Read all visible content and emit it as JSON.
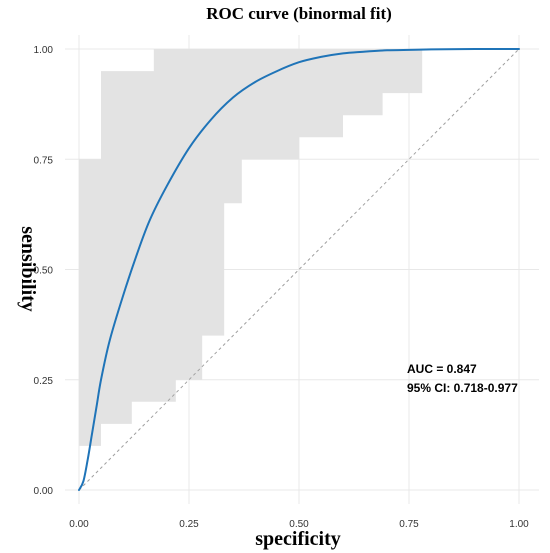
{
  "chart_data": {
    "type": "line",
    "title": "ROC curve (binormal fit)",
    "xlabel": "specificity",
    "ylabel": "sensibility",
    "xlim": [
      0,
      1
    ],
    "ylim": [
      0,
      1
    ],
    "x_ticks": [
      "0.00",
      "0.25",
      "0.50",
      "0.75",
      "1.00"
    ],
    "y_ticks": [
      "0.00",
      "0.25",
      "0.50",
      "0.75",
      "1.00"
    ],
    "grid": true,
    "colors": {
      "curve": "#1f74b8",
      "ci_band": "#e3e3e3",
      "diagonal": "#a0a0a0"
    },
    "series": [
      {
        "type": "line",
        "x": [
          0.0,
          0.01,
          0.02,
          0.03,
          0.04,
          0.05,
          0.07,
          0.1,
          0.13,
          0.16,
          0.2,
          0.25,
          0.3,
          0.35,
          0.4,
          0.45,
          0.5,
          0.55,
          0.6,
          0.65,
          0.7,
          0.75,
          0.8,
          0.9,
          1.0
        ],
        "y": [
          0.0,
          0.02,
          0.07,
          0.13,
          0.19,
          0.25,
          0.34,
          0.44,
          0.53,
          0.61,
          0.69,
          0.775,
          0.84,
          0.89,
          0.925,
          0.95,
          0.97,
          0.982,
          0.99,
          0.994,
          0.997,
          0.998,
          0.999,
          1.0,
          1.0
        ]
      }
    ],
    "ci_band": {
      "upper": [
        [
          0.0,
          0.0
        ],
        [
          0.0,
          0.75
        ],
        [
          0.05,
          0.75
        ],
        [
          0.05,
          0.95
        ],
        [
          0.17,
          0.95
        ],
        [
          0.17,
          1.0
        ],
        [
          0.78,
          1.0
        ],
        [
          0.78,
          0.9
        ]
      ],
      "lower": [
        [
          0.69,
          0.9
        ],
        [
          0.69,
          0.85
        ],
        [
          0.6,
          0.85
        ],
        [
          0.6,
          0.8
        ],
        [
          0.5,
          0.8
        ],
        [
          0.5,
          0.75
        ],
        [
          0.37,
          0.75
        ],
        [
          0.37,
          0.65
        ],
        [
          0.33,
          0.65
        ],
        [
          0.33,
          0.35
        ],
        [
          0.28,
          0.35
        ],
        [
          0.28,
          0.25
        ],
        [
          0.22,
          0.25
        ],
        [
          0.22,
          0.2
        ],
        [
          0.12,
          0.2
        ],
        [
          0.12,
          0.15
        ],
        [
          0.05,
          0.15
        ],
        [
          0.05,
          0.1
        ],
        [
          0.0,
          0.1
        ],
        [
          0.0,
          0.0
        ]
      ]
    },
    "reference_line": {
      "x": [
        0,
        1
      ],
      "y": [
        0,
        1
      ]
    },
    "annotations": [
      "AUC = 0.847",
      "95% CI: 0.718-0.977"
    ]
  }
}
